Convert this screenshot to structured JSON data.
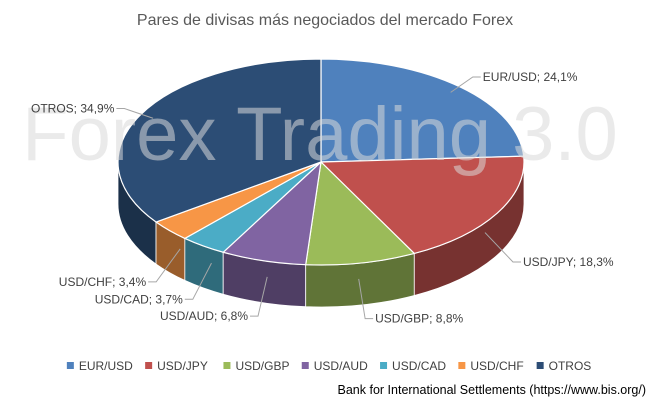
{
  "chart_data": {
    "type": "pie",
    "style": "3d",
    "title": "Pares de divisas más negociados del mercado Forex",
    "watermark": "Forex Trading 3.0",
    "source": "Bank for International Settlements (https://www.bis.org/)",
    "legend_position": "bottom",
    "categories": [
      "EUR/USD",
      "USD/JPY",
      "USD/GBP",
      "USD/AUD",
      "USD/CAD",
      "USD/CHF",
      "OTROS"
    ],
    "values": [
      24.1,
      18.3,
      8.8,
      6.8,
      3.7,
      3.4,
      34.9
    ],
    "data_labels": [
      "EUR/USD; 24,1%",
      "USD/JPY; 18,3%",
      "USD/GBP; 8,8%",
      "USD/AUD; 6,8%",
      "USD/CAD; 3,7%",
      "USD/CHF; 3,4%",
      "OTROS; 34,9%"
    ],
    "colors": [
      "#4f81bd",
      "#c0504d",
      "#9bbb59",
      "#8064a2",
      "#4bacc6",
      "#f79646",
      "#2c4d75"
    ]
  }
}
